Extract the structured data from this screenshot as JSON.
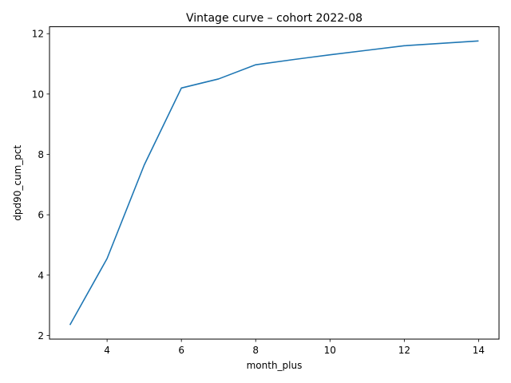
{
  "chart_data": {
    "type": "line",
    "title": "Vintage curve – cohort 2022-08",
    "xlabel": "month_plus",
    "ylabel": "dpd90_cum_pct",
    "xlim": [
      2.45,
      14.55
    ],
    "ylim": [
      1.88,
      12.23
    ],
    "xticks": [
      4,
      6,
      8,
      10,
      12,
      14
    ],
    "yticks": [
      2,
      4,
      6,
      8,
      10,
      12
    ],
    "grid": false,
    "series": [
      {
        "color": "#1f77b4",
        "x": [
          3,
          4,
          5,
          6,
          7,
          8,
          9,
          10,
          11,
          12,
          13,
          14
        ],
        "y": [
          2.35,
          4.55,
          7.65,
          10.2,
          10.5,
          10.97,
          11.14,
          11.3,
          11.45,
          11.6,
          11.68,
          11.76
        ]
      }
    ]
  }
}
